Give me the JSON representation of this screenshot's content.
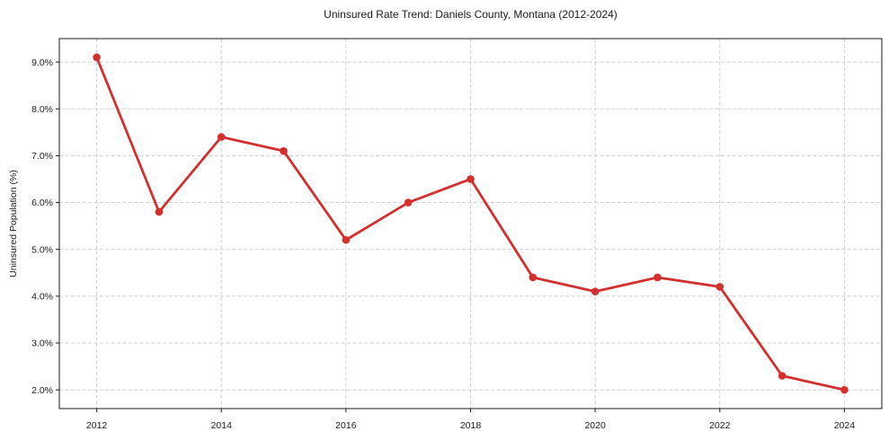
{
  "chart_data": {
    "type": "line",
    "title": "Uninsured Rate Trend: Daniels County, Montana (2012-2024)",
    "xlabel": "",
    "ylabel": "Uninsured Population (%)",
    "x": [
      2012,
      2013,
      2014,
      2015,
      2016,
      2017,
      2018,
      2019,
      2020,
      2021,
      2022,
      2023,
      2024
    ],
    "values": [
      9.1,
      5.8,
      7.4,
      7.1,
      5.2,
      6.0,
      6.5,
      4.4,
      4.1,
      4.4,
      4.2,
      2.3,
      2.0
    ],
    "units": "percent",
    "xlim": [
      2011.4,
      2024.6
    ],
    "ylim": [
      1.6,
      9.5
    ],
    "x_ticks": {
      "values": [
        2012,
        2014,
        2016,
        2018,
        2020,
        2022,
        2024
      ],
      "labels": [
        "2012",
        "2014",
        "2016",
        "2018",
        "2020",
        "2022",
        "2024"
      ]
    },
    "y_ticks": {
      "values": [
        2,
        3,
        4,
        5,
        6,
        7,
        8,
        9
      ],
      "labels": [
        "2.0%",
        "3.0%",
        "4.0%",
        "5.0%",
        "6.0%",
        "7.0%",
        "8.0%",
        "9.0%"
      ]
    },
    "grid": true,
    "grid_style": "dashed",
    "legend": "none",
    "marker": "circle",
    "line_color": "#d32f2f",
    "grid_color": "#c9c9c9",
    "frame_color": "#1a1a1a",
    "text_color": "#1a1a1a",
    "background_color": "#ffffff"
  }
}
